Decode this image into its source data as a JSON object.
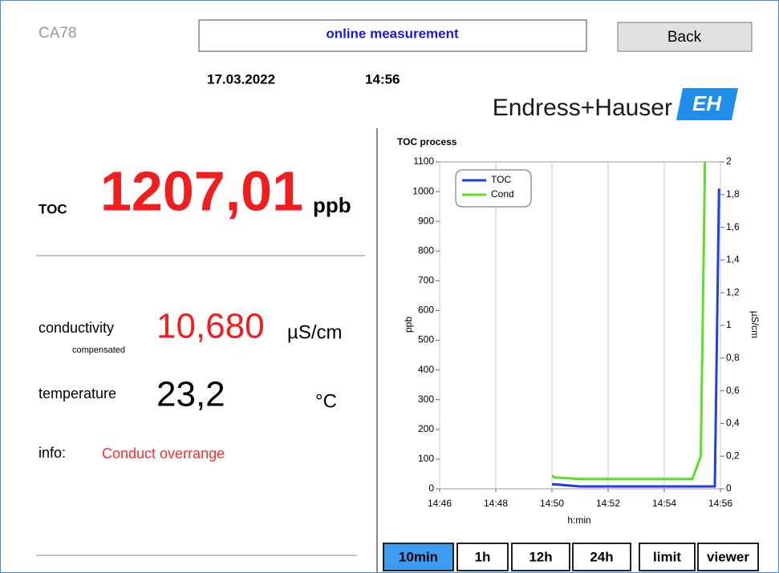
{
  "header": {
    "device": "CA78",
    "title": "online measurement",
    "back": "Back",
    "date": "17.03.2022",
    "time": "14:56",
    "brand": "Endress+Hauser",
    "logo": "EH"
  },
  "measurements": {
    "toc": {
      "label": "TOC",
      "value": "1207,01",
      "unit": "ppb"
    },
    "conductivity": {
      "label": "conductivity",
      "sublabel": "compensated",
      "value": "10,680",
      "unit": "µS/cm"
    },
    "temperature": {
      "label": "temperature",
      "value": "23,2",
      "unit": "°C"
    },
    "info": {
      "label": "info:",
      "value": "Conduct overrange"
    }
  },
  "chart_data": {
    "type": "line",
    "title": "TOC process",
    "x_label": "h:min",
    "y_label": "ppb",
    "y2_label": "µS/cm",
    "x": [
      890,
      890.1,
      891,
      895,
      895.3,
      895.45,
      895.8,
      895.95
    ],
    "xlim": [
      886,
      896
    ],
    "xticks": [
      {
        "value": 886,
        "label": "14:46"
      },
      {
        "value": 888,
        "label": "14:48"
      },
      {
        "value": 890,
        "label": "14:50"
      },
      {
        "value": 892,
        "label": "14:52"
      },
      {
        "value": 894,
        "label": "14:54"
      },
      {
        "value": 896,
        "label": "14:56"
      }
    ],
    "ylim": [
      0,
      1100
    ],
    "yticks": [
      0,
      100,
      200,
      300,
      400,
      500,
      600,
      700,
      800,
      900,
      1000,
      1100
    ],
    "y2lim": [
      0,
      2
    ],
    "y2ticks": [
      0,
      {
        "value": 0.2,
        "label": "0,2"
      },
      {
        "value": 0.4,
        "label": "0,4"
      },
      {
        "value": 0.6,
        "label": "0,6"
      },
      {
        "value": 0.8,
        "label": "0,8"
      },
      1,
      {
        "value": 1.2,
        "label": "1,2"
      },
      {
        "value": 1.4,
        "label": "1,4"
      },
      {
        "value": 1.6,
        "label": "1,6"
      },
      {
        "value": 1.8,
        "label": "1,8"
      },
      2
    ],
    "grid": "x",
    "legend": "upper left",
    "series": [
      {
        "name": "TOC",
        "color": "#1f3fe0",
        "values": [
          15,
          15,
          8,
          8,
          8,
          8,
          8,
          1010
        ]
      },
      {
        "name": "Cond",
        "color": "#5ddc2a",
        "axis": "y2",
        "values": [
          0.08,
          0.07,
          0.06,
          0.06,
          0.2,
          2,
          null,
          null
        ]
      }
    ]
  },
  "range_buttons": [
    "10min",
    "1h",
    "12h",
    "24h",
    "limit",
    "viewer"
  ],
  "selected_button": 0
}
